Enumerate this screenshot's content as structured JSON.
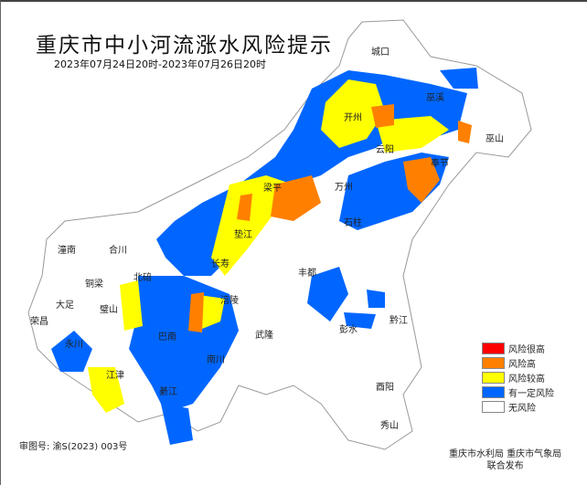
{
  "title": "重庆市中小河流涨水风险提示",
  "subtitle": "2023年07月24日20时-2023年07月26日20时",
  "colors": {
    "very_high": "#ff0000",
    "high": "#ff8000",
    "higher": "#ffff00",
    "some": "#0066ff",
    "none": "#ffffff",
    "boundary": "#999999"
  },
  "legend": [
    {
      "label": "风险很高",
      "color": "#ff0000"
    },
    {
      "label": "风险高",
      "color": "#ff8000"
    },
    {
      "label": "风险较高",
      "color": "#ffff00"
    },
    {
      "label": "有一定风险",
      "color": "#0066ff"
    },
    {
      "label": "无风险",
      "color": "#ffffff"
    }
  ],
  "districts": [
    "城口",
    "巫溪",
    "巫山",
    "开州",
    "云阳",
    "奉节",
    "梁平",
    "万州",
    "垫江",
    "石柱",
    "丰都",
    "涪陵",
    "武隆",
    "彭水",
    "黔江",
    "酉阳",
    "秀山",
    "潼南",
    "合川",
    "铜梁",
    "大足",
    "荣昌",
    "永川",
    "璧山",
    "北碚",
    "长寿",
    "巴南",
    "南川",
    "綦江",
    "江津"
  ],
  "publisher": {
    "line1": "重庆市水利局  重庆市气象局",
    "line2": "联合发布"
  },
  "approval": "审图号: 渝S(2023) 003号"
}
